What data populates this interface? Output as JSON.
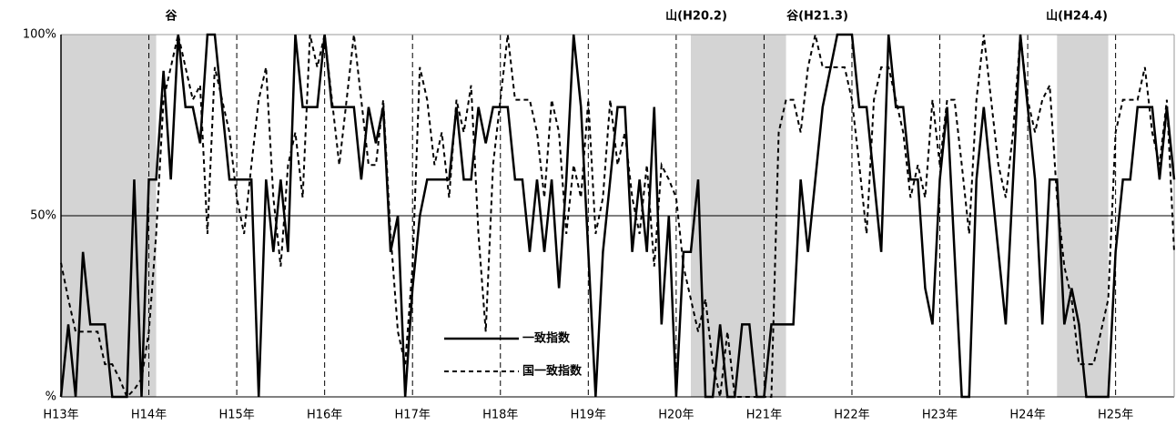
{
  "chart_data": {
    "type": "line",
    "annotations": [
      "谷",
      "山(H20.2)",
      "谷(H21.3)",
      "山(H24.4)"
    ],
    "categories": [
      "H13年",
      null,
      null,
      null,
      null,
      null,
      null,
      null,
      null,
      null,
      null,
      null,
      "H14年",
      null,
      null,
      null,
      null,
      null,
      null,
      null,
      null,
      null,
      null,
      null,
      "H15年",
      null,
      null,
      null,
      null,
      null,
      null,
      null,
      null,
      null,
      null,
      null,
      "H16年",
      null,
      null,
      null,
      null,
      null,
      null,
      null,
      null,
      null,
      null,
      null,
      "H17年",
      null,
      null,
      null,
      null,
      null,
      null,
      null,
      null,
      null,
      null,
      null,
      "H18年",
      null,
      null,
      null,
      null,
      null,
      null,
      null,
      null,
      null,
      null,
      null,
      "H19年",
      null,
      null,
      null,
      null,
      null,
      null,
      null,
      null,
      null,
      null,
      null,
      "H20年",
      null,
      null,
      null,
      null,
      null,
      null,
      null,
      null,
      null,
      null,
      null,
      "H21年",
      null,
      null,
      null,
      null,
      null,
      null,
      null,
      null,
      null,
      null,
      null,
      "H22年",
      null,
      null,
      null,
      null,
      null,
      null,
      null,
      null,
      null,
      null,
      null,
      "H23年",
      null,
      null,
      null,
      null,
      null,
      null,
      null,
      null,
      null,
      null,
      null,
      "H24年",
      null,
      null,
      null,
      null,
      null,
      null,
      null,
      null,
      null,
      null,
      null,
      "H25年",
      null,
      null,
      null,
      null,
      null,
      null,
      null,
      null
    ],
    "series": [
      {
        "name": "一致指数",
        "color": "#000000",
        "dash": false,
        "values": [
          0,
          20,
          0,
          40,
          20,
          20,
          20,
          0,
          0,
          0,
          60,
          0,
          60,
          60,
          90,
          60,
          100,
          80,
          80,
          70,
          100,
          100,
          80,
          60,
          60,
          60,
          60,
          0,
          60,
          40,
          60,
          40,
          100,
          80,
          80,
          80,
          100,
          80,
          80,
          80,
          80,
          60,
          80,
          70,
          80,
          40,
          50,
          0,
          30,
          50,
          60,
          60,
          60,
          60,
          80,
          60,
          60,
          80,
          70,
          80,
          80,
          80,
          60,
          60,
          40,
          60,
          40,
          60,
          30,
          60,
          100,
          80,
          40,
          0,
          40,
          60,
          80,
          80,
          40,
          60,
          40,
          80,
          20,
          50,
          0,
          40,
          40,
          60,
          0,
          0,
          20,
          0,
          0,
          20,
          20,
          0,
          0,
          20,
          20,
          20,
          20,
          60,
          40,
          60,
          80,
          90,
          100,
          100,
          100,
          80,
          80,
          60,
          40,
          100,
          80,
          80,
          60,
          60,
          30,
          20,
          60,
          80,
          40,
          0,
          0,
          60,
          80,
          60,
          40,
          20,
          60,
          100,
          80,
          60,
          20,
          60,
          60,
          20,
          30,
          20,
          0,
          0,
          0,
          0,
          40,
          60,
          60,
          80,
          80,
          80,
          60,
          80,
          60
        ]
      },
      {
        "name": "国一致指数",
        "color": "#000000",
        "dash": true,
        "values": [
          37,
          27,
          18,
          18,
          18,
          18,
          9,
          9,
          5,
          0,
          2,
          5,
          18,
          45,
          82,
          91,
          100,
          91,
          82,
          86,
          45,
          91,
          82,
          73,
          55,
          45,
          64,
          82,
          91,
          55,
          36,
          64,
          73,
          55,
          100,
          91,
          100,
          82,
          64,
          82,
          100,
          82,
          64,
          64,
          82,
          45,
          18,
          9,
          36,
          91,
          82,
          64,
          73,
          55,
          82,
          73,
          86,
          45,
          18,
          64,
          82,
          100,
          82,
          82,
          82,
          73,
          55,
          82,
          73,
          45,
          64,
          55,
          82,
          45,
          55,
          82,
          64,
          73,
          55,
          45,
          64,
          36,
          64,
          60,
          55,
          36,
          27,
          18,
          27,
          9,
          0,
          18,
          0,
          0,
          0,
          0,
          0,
          0,
          73,
          82,
          82,
          73,
          91,
          100,
          91,
          91,
          91,
          91,
          82,
          64,
          45,
          82,
          91,
          91,
          82,
          73,
          55,
          64,
          55,
          82,
          64,
          82,
          82,
          64,
          45,
          82,
          100,
          82,
          64,
          55,
          73,
          100,
          82,
          73,
          82,
          86,
          55,
          36,
          27,
          9,
          9,
          9,
          18,
          27,
          73,
          82,
          82,
          82,
          91,
          73,
          64,
          82,
          40
        ]
      }
    ],
    "shaded_periods": [
      [
        0,
        13
      ],
      [
        86,
        99
      ],
      [
        136,
        143
      ]
    ],
    "ylim": [
      0,
      100
    ],
    "yticks": [
      {
        "value": 0,
        "label": "%"
      },
      {
        "value": 50,
        "label": "50%"
      },
      {
        "value": 100,
        "label": "100%"
      }
    ],
    "grid": true
  }
}
